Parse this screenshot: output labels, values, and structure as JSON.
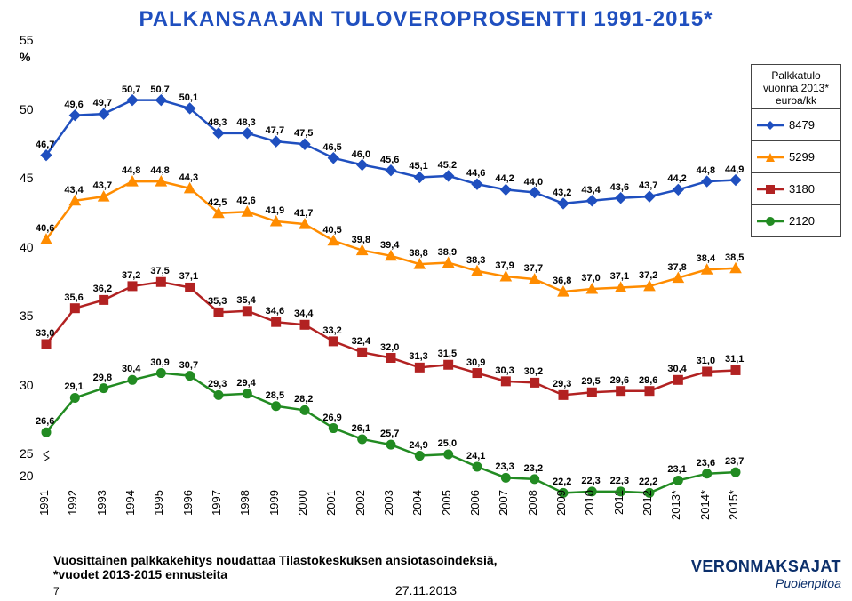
{
  "title": "PALKANSAAJAN TULOVEROPROSENTTI 1991-2015*",
  "layout": {
    "plotLeft": 52,
    "plotRight": 828,
    "plotTop": 46,
    "plotBottom": 536,
    "axisBreak": true,
    "yMinReal": 20,
    "yMaxReal": 55,
    "yMinPlot": 25,
    "yTicks": [
      20,
      25,
      30,
      35,
      40,
      45,
      50,
      55
    ],
    "yLabel": "%",
    "font_axis": 14,
    "font_point": 11
  },
  "bg": "#ffffff",
  "years": [
    "1991",
    "1992",
    "1993",
    "1994",
    "1995",
    "1996",
    "1997",
    "1998",
    "1999",
    "2000",
    "2001",
    "2002",
    "2003",
    "2004",
    "2005",
    "2006",
    "2007",
    "2008",
    "2009",
    "2010",
    "2011",
    "2012",
    "2013*",
    "2014*",
    "2015*"
  ],
  "series": [
    {
      "key": "8479",
      "color": "#1f4fbf",
      "marker": "diamond",
      "v": [
        46.7,
        49.6,
        49.7,
        50.7,
        50.7,
        50.1,
        48.3,
        48.3,
        47.7,
        47.5,
        46.5,
        46.0,
        45.6,
        45.1,
        45.2,
        44.6,
        44.2,
        44.0,
        43.2,
        43.4,
        43.6,
        43.7,
        44.2,
        44.8,
        44.9
      ]
    },
    {
      "key": "5299",
      "color": "#ff8c00",
      "marker": "triangle",
      "v": [
        40.6,
        43.4,
        43.7,
        44.8,
        44.8,
        44.3,
        42.5,
        42.6,
        41.9,
        41.7,
        40.5,
        39.8,
        39.4,
        38.8,
        38.9,
        38.3,
        37.9,
        37.7,
        36.8,
        37.0,
        37.1,
        37.2,
        37.8,
        38.4,
        38.5
      ]
    },
    {
      "key": "3180",
      "color": "#b22222",
      "marker": "square",
      "v": [
        33.0,
        35.6,
        36.2,
        37.2,
        37.5,
        37.1,
        35.3,
        35.4,
        34.6,
        34.4,
        33.2,
        32.4,
        32.0,
        31.3,
        31.5,
        30.9,
        30.3,
        30.2,
        29.3,
        29.5,
        29.6,
        29.6,
        30.4,
        31.0,
        31.1
      ]
    },
    {
      "key": "2120",
      "color": "#228b22",
      "marker": "circle",
      "v": [
        26.6,
        29.1,
        29.8,
        30.4,
        30.9,
        30.7,
        29.3,
        29.4,
        28.5,
        28.2,
        26.9,
        26.1,
        25.7,
        24.9,
        25.0,
        24.1,
        23.3,
        23.2,
        22.2,
        22.3,
        22.3,
        22.2,
        23.1,
        23.6,
        23.7
      ]
    }
  ],
  "legend": {
    "header": "Palkkatulo vuonna 2013* euroa/kk"
  },
  "footer": {
    "note": "Vuosittainen palkkakehitys noudattaa Tilastokeskuksen ansiotasoindeksiä,\n*vuodet 2013-2015 ennusteita",
    "page": "7",
    "date": "27.11.2013",
    "brand1": "VERONMAKSAJAT",
    "brand2": "Puolenpitoa"
  }
}
